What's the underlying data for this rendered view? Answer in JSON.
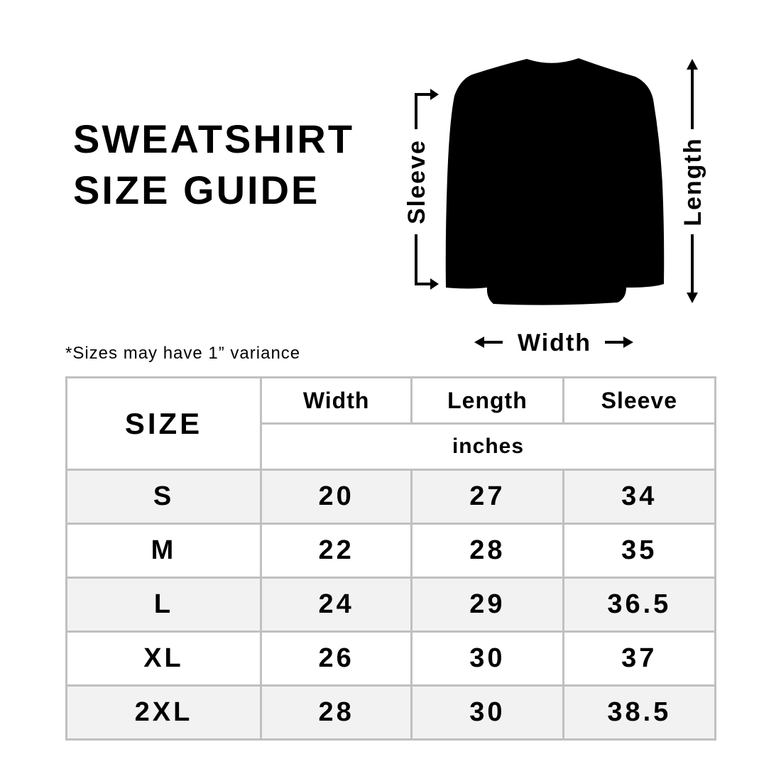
{
  "title": {
    "line1": "SWEATSHIRT",
    "line2": "SIZE GUIDE"
  },
  "diagram": {
    "sleeve_label": "Sleeve",
    "length_label": "Length",
    "width_label": "Width",
    "garment_color": "#000000"
  },
  "note": "*Sizes may have 1” variance",
  "table": {
    "size_header": "SIZE",
    "columns": [
      "Width",
      "Length",
      "Sleeve"
    ],
    "unit": "inches",
    "rows": [
      {
        "size": "S",
        "values": [
          "20",
          "27",
          "34"
        ]
      },
      {
        "size": "M",
        "values": [
          "22",
          "28",
          "35"
        ]
      },
      {
        "size": "L",
        "values": [
          "24",
          "29",
          "36.5"
        ]
      },
      {
        "size": "XL",
        "values": [
          "26",
          "30",
          "37"
        ]
      },
      {
        "size": "2XL",
        "values": [
          "28",
          "30",
          "38.5"
        ]
      }
    ],
    "border_color": "#c0c0c0",
    "alt_row_color": "#f2f2f2"
  }
}
